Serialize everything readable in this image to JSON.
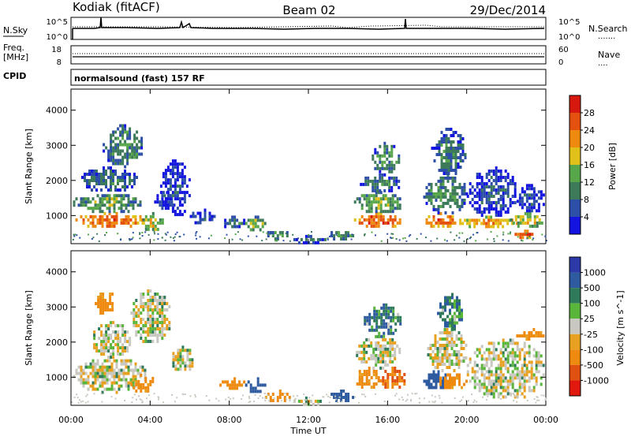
{
  "header": {
    "station": "Kodiak (fitACF)",
    "beam": "Beam 02",
    "date": "29/Dec/2014"
  },
  "noise_panel": {
    "left_title": "N.Sky",
    "left_ticks": [
      "10^5",
      "10^0"
    ],
    "right_ticks": [
      "10^5",
      "10^0"
    ],
    "right_title": "N.Search",
    "right_legend": "......."
  },
  "freq_panel": {
    "left_title_1": "Freq.",
    "left_title_2": "[MHz]",
    "left_ticks": [
      "18",
      "8"
    ],
    "right_ticks": [
      "60",
      "0"
    ],
    "right_title": "Nave",
    "right_legend": "....",
    "cpid_label": "CPID"
  },
  "cpid_text": "normalsound (fast) 157 RF",
  "colors": {
    "power": [
      "#1414e0",
      "#2d4fa8",
      "#3c7a5a",
      "#57a64a",
      "#e2c01a",
      "#ee8a10",
      "#e4500d",
      "#d7180e"
    ],
    "velocity": [
      "#2c3aa8",
      "#2e5aa0",
      "#2f7a5a",
      "#5ab53b",
      "#c8c8c0",
      "#e8a020",
      "#ee8a10",
      "#e05010",
      "#e0180e"
    ]
  },
  "chart_data": [
    {
      "type": "heatmap",
      "name": "power",
      "ylabel": "Slant Range [km]",
      "yticks": [
        "1000",
        "2000",
        "3000",
        "4000"
      ],
      "ylim": [
        200,
        4600
      ],
      "xlim": [
        0,
        24
      ],
      "colorbar_label": "Power [dB]",
      "colorbar_ticks": [
        "4",
        "8",
        "12",
        "16",
        "20",
        "24",
        "28"
      ],
      "zlim": [
        0,
        32
      ],
      "blobs": [
        {
          "t0": 0.1,
          "t1": 3.8,
          "r0": 700,
          "r1": 1100,
          "z": 26
        },
        {
          "t0": 0.1,
          "t1": 3.5,
          "r0": 1100,
          "r1": 1700,
          "z": 14
        },
        {
          "t0": 0.4,
          "t1": 3.3,
          "r0": 1700,
          "r1": 2400,
          "z": 9
        },
        {
          "t0": 1.6,
          "t1": 3.6,
          "r0": 2400,
          "r1": 3600,
          "z": 12
        },
        {
          "t0": 3.5,
          "t1": 4.6,
          "r0": 600,
          "r1": 1100,
          "z": 18
        },
        {
          "t0": 4.2,
          "t1": 5.2,
          "r0": 1200,
          "r1": 1700,
          "z": 8
        },
        {
          "t0": 4.5,
          "t1": 6.0,
          "r0": 1000,
          "r1": 2600,
          "z": 6
        },
        {
          "t0": 6.0,
          "t1": 7.2,
          "r0": 800,
          "r1": 1200,
          "z": 7
        },
        {
          "t0": 7.5,
          "t1": 8.8,
          "r0": 700,
          "r1": 1000,
          "z": 10
        },
        {
          "t0": 8.8,
          "t1": 9.8,
          "r0": 600,
          "r1": 1000,
          "z": 16
        },
        {
          "t0": 9.8,
          "t1": 11.0,
          "r0": 350,
          "r1": 650,
          "z": 12
        },
        {
          "t0": 11.0,
          "t1": 13.0,
          "r0": 250,
          "r1": 450,
          "z": 9
        },
        {
          "t0": 13.0,
          "t1": 14.3,
          "r0": 350,
          "r1": 650,
          "z": 12
        },
        {
          "t0": 14.3,
          "t1": 16.9,
          "r0": 700,
          "r1": 1100,
          "z": 27
        },
        {
          "t0": 14.3,
          "t1": 16.7,
          "r0": 1100,
          "r1": 1700,
          "z": 15
        },
        {
          "t0": 14.6,
          "t1": 16.6,
          "r0": 1700,
          "r1": 2200,
          "z": 10
        },
        {
          "t0": 15.2,
          "t1": 16.6,
          "r0": 2200,
          "r1": 3100,
          "z": 12
        },
        {
          "t0": 17.8,
          "t1": 19.5,
          "r0": 700,
          "r1": 1100,
          "z": 25
        },
        {
          "t0": 17.8,
          "t1": 20.0,
          "r0": 1100,
          "r1": 2200,
          "z": 12
        },
        {
          "t0": 18.2,
          "t1": 19.9,
          "r0": 2200,
          "r1": 3500,
          "z": 10
        },
        {
          "t0": 19.5,
          "t1": 22.6,
          "r0": 700,
          "r1": 1000,
          "z": 22
        },
        {
          "t0": 20.0,
          "t1": 22.5,
          "r0": 1000,
          "r1": 2400,
          "z": 7
        },
        {
          "t0": 22.2,
          "t1": 23.9,
          "r0": 700,
          "r1": 1100,
          "z": 18
        },
        {
          "t0": 22.4,
          "t1": 23.9,
          "r0": 1100,
          "r1": 1900,
          "z": 6
        },
        {
          "t0": 22.3,
          "t1": 23.6,
          "r0": 400,
          "r1": 600,
          "z": 27
        }
      ]
    },
    {
      "type": "heatmap",
      "name": "velocity",
      "ylabel": "Slant Range [km]",
      "yticks": [
        "1000",
        "2000",
        "3000",
        "4000"
      ],
      "ylim": [
        200,
        4600
      ],
      "xlim": [
        0,
        24
      ],
      "xlabel": "Time UT",
      "xticks": [
        "00:00",
        "04:00",
        "08:00",
        "12:00",
        "16:00",
        "20:00",
        "00:00"
      ],
      "colorbar_label": "Velocity [m s^-1]",
      "colorbar_ticks": [
        "1000",
        "500",
        "100",
        "25",
        "-25",
        "-100",
        "-500",
        "-1000"
      ],
      "blobs": [
        {
          "t0": 0.1,
          "t1": 3.8,
          "r0": 600,
          "r1": 1600,
          "v": 0
        },
        {
          "t0": 1.0,
          "t1": 3.0,
          "r0": 1600,
          "r1": 2600,
          "v": 0
        },
        {
          "t0": 3.0,
          "t1": 4.2,
          "r0": 600,
          "r1": 1100,
          "v": -150
        },
        {
          "t0": 1.2,
          "t1": 2.2,
          "r0": 2800,
          "r1": 3500,
          "v": -150
        },
        {
          "t0": 3.0,
          "t1": 5.0,
          "r0": 2000,
          "r1": 3500,
          "v": 0
        },
        {
          "t0": 5.0,
          "t1": 6.2,
          "r0": 1200,
          "r1": 1900,
          "v": 0
        },
        {
          "t0": 7.5,
          "t1": 8.8,
          "r0": 700,
          "r1": 1000,
          "v": -150
        },
        {
          "t0": 8.8,
          "t1": 9.8,
          "r0": 600,
          "r1": 1000,
          "v": 200
        },
        {
          "t0": 9.8,
          "t1": 11.0,
          "r0": 350,
          "r1": 650,
          "v": -150
        },
        {
          "t0": 11.0,
          "t1": 13.0,
          "r0": 250,
          "r1": 450,
          "v": 0
        },
        {
          "t0": 13.0,
          "t1": 14.3,
          "r0": 350,
          "r1": 650,
          "v": 200
        },
        {
          "t0": 14.3,
          "t1": 15.6,
          "r0": 700,
          "r1": 1300,
          "v": -150
        },
        {
          "t0": 15.6,
          "t1": 16.9,
          "r0": 700,
          "r1": 1300,
          "v": -300
        },
        {
          "t0": 14.4,
          "t1": 16.6,
          "r0": 1300,
          "r1": 2200,
          "v": 0
        },
        {
          "t0": 14.8,
          "t1": 16.6,
          "r0": 2200,
          "r1": 3100,
          "v": 80
        },
        {
          "t0": 17.8,
          "t1": 19.0,
          "r0": 700,
          "r1": 1200,
          "v": 200
        },
        {
          "t0": 18.5,
          "t1": 20.0,
          "r0": 700,
          "r1": 1200,
          "v": -150
        },
        {
          "t0": 18.0,
          "t1": 20.0,
          "r0": 1200,
          "r1": 2400,
          "v": 0
        },
        {
          "t0": 18.5,
          "t1": 19.8,
          "r0": 2400,
          "r1": 3400,
          "v": 80
        },
        {
          "t0": 20.0,
          "t1": 23.9,
          "r0": 400,
          "r1": 2100,
          "v": 0
        },
        {
          "t0": 22.5,
          "t1": 23.9,
          "r0": 2100,
          "r1": 2400,
          "v": -150
        }
      ]
    }
  ]
}
